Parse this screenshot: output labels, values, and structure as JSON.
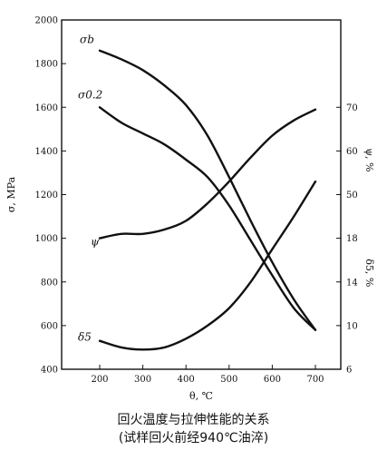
{
  "chart_data": {
    "type": "line",
    "x_axis": {
      "label": "θ, ℃",
      "ticks": [
        200,
        300,
        400,
        500,
        600,
        700
      ],
      "range": [
        200,
        700
      ]
    },
    "y_left": {
      "label": "σ, MPa",
      "ticks": [
        400,
        600,
        800,
        1000,
        1200,
        1400,
        1600,
        1800,
        2000
      ],
      "range": [
        400,
        2000
      ]
    },
    "y_right_upper": {
      "label": "ψ, %",
      "ticks": [
        60,
        70
      ],
      "extra_tick": {
        "label": "50",
        "left_value": 1200
      }
    },
    "y_right_lower": {
      "label": "δ5, %",
      "ticks": [
        6,
        10,
        14,
        18
      ],
      "tick_left_values": [
        400,
        600,
        800,
        1000
      ]
    },
    "grid": false,
    "series": [
      {
        "name": "σb",
        "x": [
          200,
          250,
          300,
          350,
          400,
          450,
          500,
          550,
          600,
          650,
          700
        ],
        "y": [
          1860,
          1820,
          1770,
          1700,
          1610,
          1470,
          1280,
          1080,
          890,
          720,
          580
        ]
      },
      {
        "name": "σ0.2",
        "x": [
          200,
          250,
          300,
          350,
          400,
          450,
          500,
          550,
          600,
          650,
          700
        ],
        "y": [
          1600,
          1530,
          1480,
          1430,
          1360,
          1280,
          1150,
          990,
          830,
          680,
          580
        ]
      },
      {
        "name": "ψ",
        "x": [
          200,
          250,
          300,
          350,
          400,
          450,
          500,
          550,
          600,
          650,
          700
        ],
        "y": [
          1000,
          1020,
          1020,
          1040,
          1080,
          1160,
          1260,
          1370,
          1470,
          1540,
          1590
        ]
      },
      {
        "name": "δ5",
        "x": [
          200,
          250,
          300,
          350,
          400,
          450,
          500,
          550,
          600,
          650,
          700
        ],
        "y": [
          530,
          500,
          490,
          500,
          540,
          600,
          680,
          800,
          950,
          1100,
          1260
        ]
      }
    ],
    "caption": [
      "回火温度与拉伸性能的关系",
      "(试样回火前经940℃油淬)"
    ]
  }
}
